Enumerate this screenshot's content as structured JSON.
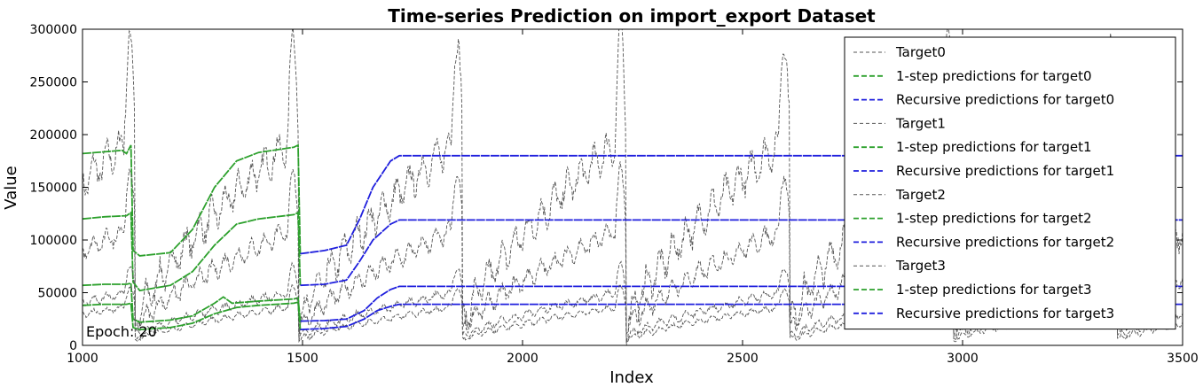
{
  "chart_data": {
    "type": "line",
    "title": "Time-series Prediction on import_export Dataset",
    "xlabel": "Index",
    "ylabel": "Value",
    "xlim": [
      1000,
      3500
    ],
    "ylim": [
      0,
      300000
    ],
    "xticks": [
      "1000",
      "1500",
      "2000",
      "2500",
      "3000",
      "3500"
    ],
    "yticks": [
      "0",
      "50000",
      "100000",
      "150000",
      "200000",
      "250000",
      "300000"
    ],
    "grid": false,
    "legend_position": "top-right",
    "annotation": "Epoch: 20",
    "colors": {
      "target": "#555555",
      "one_step": "#2ca02c",
      "recursive": "#1f1fdd"
    },
    "series": [
      {
        "name": "Target0",
        "role": "target",
        "index": 0,
        "x_start": 1000,
        "x_end": 3500,
        "cycle": 372,
        "min_value": 20000,
        "max_value": 295000
      },
      {
        "name": "1-step predictions for target0",
        "role": "one_step",
        "index": 0,
        "x": [
          1000,
          1090,
          1100,
          1110,
          1115,
          1130,
          1200,
          1250,
          1300,
          1350,
          1400,
          1480,
          1490,
          1495
        ],
        "values": [
          182000,
          185000,
          182000,
          190000,
          90000,
          85000,
          88000,
          110000,
          150000,
          175000,
          183000,
          188000,
          190000,
          85000
        ]
      },
      {
        "name": "Recursive predictions for target0",
        "role": "recursive",
        "index": 0,
        "x": [
          1495,
          1550,
          1600,
          1630,
          1660,
          1700,
          1720,
          3500
        ],
        "values": [
          87000,
          90000,
          95000,
          120000,
          150000,
          175000,
          180000,
          180000
        ]
      },
      {
        "name": "Target1",
        "role": "target",
        "index": 1,
        "x_start": 1000,
        "x_end": 3500,
        "cycle": 372,
        "min_value": 15000,
        "max_value": 165000
      },
      {
        "name": "1-step predictions for target1",
        "role": "one_step",
        "index": 1,
        "x": [
          1000,
          1050,
          1100,
          1110,
          1115,
          1130,
          1200,
          1250,
          1300,
          1350,
          1400,
          1480,
          1490,
          1495
        ],
        "values": [
          120000,
          122000,
          123000,
          126000,
          60000,
          52000,
          57000,
          70000,
          95000,
          115000,
          120000,
          124000,
          126000,
          57000
        ]
      },
      {
        "name": "Recursive predictions for target1",
        "role": "recursive",
        "index": 1,
        "x": [
          1495,
          1550,
          1600,
          1630,
          1660,
          1700,
          1720,
          3500
        ],
        "values": [
          57000,
          58000,
          62000,
          80000,
          100000,
          115000,
          119000,
          119000
        ]
      },
      {
        "name": "Target2",
        "role": "target",
        "index": 2,
        "x_start": 1000,
        "x_end": 3500,
        "cycle": 372,
        "min_value": 8000,
        "max_value": 75000
      },
      {
        "name": "1-step predictions for target2",
        "role": "one_step",
        "index": 2,
        "x": [
          1000,
          1050,
          1100,
          1110,
          1115,
          1130,
          1200,
          1250,
          1300,
          1320,
          1340,
          1400,
          1480,
          1490,
          1495
        ],
        "values": [
          57000,
          58000,
          58000,
          59000,
          25000,
          22000,
          24000,
          28000,
          40000,
          46000,
          40000,
          42000,
          44000,
          45000,
          23000
        ]
      },
      {
        "name": "Recursive predictions for target2",
        "role": "recursive",
        "index": 2,
        "x": [
          1495,
          1550,
          1600,
          1640,
          1670,
          1700,
          1720,
          3500
        ],
        "values": [
          23000,
          23500,
          25000,
          33000,
          45000,
          53000,
          56000,
          56000
        ]
      },
      {
        "name": "Target3",
        "role": "target",
        "index": 3,
        "x_start": 1000,
        "x_end": 3500,
        "cycle": 372,
        "min_value": 5000,
        "max_value": 55000
      },
      {
        "name": "1-step predictions for target3",
        "role": "one_step",
        "index": 3,
        "x": [
          1000,
          1050,
          1100,
          1110,
          1115,
          1130,
          1200,
          1250,
          1300,
          1350,
          1400,
          1480,
          1490,
          1495
        ],
        "values": [
          38000,
          39000,
          39000,
          40000,
          17000,
          15000,
          17000,
          21000,
          30000,
          36000,
          38000,
          40000,
          41000,
          15000
        ]
      },
      {
        "name": "Recursive predictions for target3",
        "role": "recursive",
        "index": 3,
        "x": [
          1495,
          1550,
          1600,
          1640,
          1670,
          1700,
          1720,
          3500
        ],
        "values": [
          15000,
          16000,
          18000,
          25000,
          33000,
          37000,
          39000,
          39000
        ]
      }
    ]
  }
}
